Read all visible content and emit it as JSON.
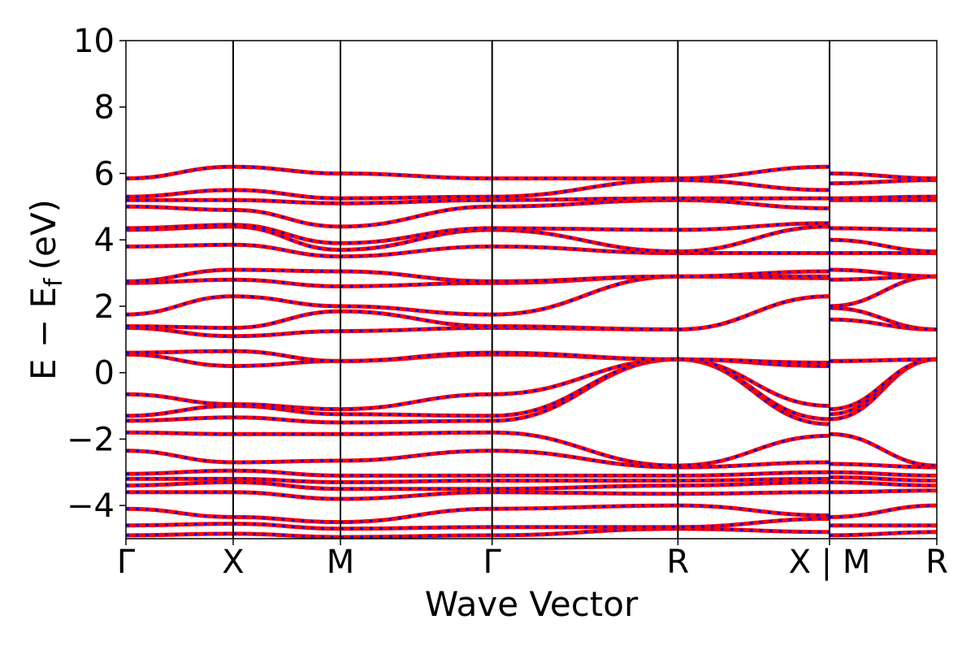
{
  "chart_data": {
    "type": "line",
    "title": "",
    "xlabel": "Wave Vector",
    "ylabel_main": "E − E",
    "ylabel_sub": "f",
    "ylabel_unit": "(eV)",
    "ylim": [
      -5,
      10
    ],
    "yticks": [
      10,
      8,
      6,
      4,
      2,
      0,
      -2,
      -4
    ],
    "ytick_labels": [
      "10",
      "8",
      "6",
      "4",
      "2",
      "0",
      "−2",
      "−4"
    ],
    "xlim": [
      0,
      7.5
    ],
    "kpoint_labels": [
      "Γ",
      "X",
      "M",
      "Γ",
      "R",
      "X | M",
      "R"
    ],
    "kpoint_positions": [
      0,
      1,
      2,
      3.414,
      5.146,
      6.56,
      7.56
    ],
    "grid": false,
    "legend": "none",
    "colors": {
      "band_line": "#ff0000",
      "band_dash": "#0000ff",
      "kpath_line": "#000000"
    },
    "series": [
      {
        "x": [
          0,
          1,
          2,
          3.414,
          5.146,
          6.56,
          6.561,
          7.56
        ],
        "y": [
          -4.9,
          -4.85,
          -4.95,
          -4.9,
          -4.7,
          -4.8,
          -4.9,
          -4.8
        ]
      },
      {
        "x": [
          0,
          1,
          2,
          3.414,
          5.146,
          6.56,
          6.561,
          7.56
        ],
        "y": [
          -4.6,
          -4.55,
          -4.7,
          -4.65,
          -4.65,
          -4.4,
          -4.6,
          -4.6
        ]
      },
      {
        "x": [
          0,
          1,
          2,
          3.414,
          5.146,
          6.56,
          6.561,
          7.56
        ],
        "y": [
          -4.1,
          -4.35,
          -4.5,
          -4.1,
          -4.0,
          -4.3,
          -4.35,
          -4.0
        ]
      },
      {
        "x": [
          0,
          1,
          2,
          3.414,
          5.146,
          6.56,
          6.561,
          7.56
        ],
        "y": [
          -3.6,
          -3.6,
          -3.8,
          -3.6,
          -3.65,
          -3.6,
          -3.6,
          -3.55
        ]
      },
      {
        "x": [
          0,
          1,
          2,
          3.414,
          5.146,
          6.56,
          6.561,
          7.56
        ],
        "y": [
          -3.4,
          -3.3,
          -3.5,
          -3.5,
          -3.4,
          -3.3,
          -3.3,
          -3.4
        ]
      },
      {
        "x": [
          0,
          1,
          2,
          3.414,
          5.146,
          6.56,
          6.561,
          7.56
        ],
        "y": [
          -3.2,
          -3.2,
          -3.3,
          -3.25,
          -3.25,
          -3.2,
          -3.15,
          -3.25
        ]
      },
      {
        "x": [
          0,
          1,
          2,
          3.414,
          5.146,
          6.56,
          6.561,
          7.56
        ],
        "y": [
          -3.05,
          -2.95,
          -3.1,
          -3.1,
          -3.1,
          -3.0,
          -3.0,
          -3.1
        ]
      },
      {
        "x": [
          0,
          1,
          2,
          3.414,
          5.146,
          6.56,
          6.561,
          7.56
        ],
        "y": [
          -2.35,
          -2.7,
          -2.65,
          -2.35,
          -2.85,
          -2.7,
          -2.75,
          -2.85
        ]
      },
      {
        "x": [
          0,
          1,
          2,
          3.414,
          5.146,
          6.56,
          6.561,
          7.56
        ],
        "y": [
          -1.8,
          -1.85,
          -1.85,
          -1.8,
          -2.8,
          -1.9,
          -1.85,
          -2.8
        ]
      },
      {
        "x": [
          0,
          1,
          2,
          3.414,
          5.146,
          6.56,
          6.561,
          7.56
        ],
        "y": [
          -1.45,
          -1.35,
          -1.5,
          -1.45,
          0.4,
          -1.55,
          -1.4,
          0.4
        ]
      },
      {
        "x": [
          0,
          1,
          2,
          3.414,
          5.146,
          6.56,
          6.561,
          7.56
        ],
        "y": [
          -1.3,
          -1.0,
          -1.25,
          -1.3,
          0.4,
          -1.4,
          -1.25,
          0.4
        ]
      },
      {
        "x": [
          0,
          1,
          2,
          3.414,
          5.146,
          6.56,
          6.561,
          7.56
        ],
        "y": [
          -0.65,
          -0.95,
          -1.1,
          -0.65,
          0.4,
          -1.0,
          -1.1,
          0.4
        ]
      },
      {
        "x": [
          0,
          1,
          2,
          3.414,
          5.146,
          6.56,
          6.561,
          7.56
        ],
        "y": [
          0.55,
          0.2,
          0.35,
          0.55,
          0.4,
          0.2,
          0.35,
          0.4
        ]
      },
      {
        "x": [
          0,
          1,
          2,
          3.414,
          5.146,
          6.56,
          6.561,
          7.56
        ],
        "y": [
          0.6,
          0.65,
          0.35,
          0.6,
          0.4,
          0.3,
          0.35,
          0.4
        ]
      },
      {
        "x": [
          0,
          1,
          2,
          3.414,
          5.146,
          6.56,
          6.561,
          7.56
        ],
        "y": [
          1.35,
          1.1,
          1.25,
          1.35,
          1.3,
          2.3,
          1.6,
          1.3
        ]
      },
      {
        "x": [
          0,
          1,
          2,
          3.414,
          5.146,
          6.56,
          6.561,
          7.56
        ],
        "y": [
          1.4,
          1.35,
          1.85,
          1.4,
          1.3,
          2.3,
          1.95,
          1.3
        ]
      },
      {
        "x": [
          0,
          1,
          2,
          3.414,
          5.146,
          6.56,
          6.561,
          7.56
        ],
        "y": [
          1.75,
          2.3,
          2.0,
          1.75,
          2.9,
          2.85,
          2.0,
          2.9
        ]
      },
      {
        "x": [
          0,
          1,
          2,
          3.414,
          5.146,
          6.56,
          6.561,
          7.56
        ],
        "y": [
          2.7,
          2.8,
          2.6,
          2.7,
          2.9,
          2.9,
          2.8,
          2.9
        ]
      },
      {
        "x": [
          0,
          1,
          2,
          3.414,
          5.146,
          6.56,
          6.561,
          7.56
        ],
        "y": [
          2.75,
          3.1,
          3.05,
          2.75,
          2.9,
          3.05,
          3.1,
          2.9
        ]
      },
      {
        "x": [
          0,
          1,
          2,
          3.414,
          5.146,
          6.56,
          6.561,
          7.56
        ],
        "y": [
          3.8,
          3.85,
          3.5,
          3.8,
          3.6,
          3.6,
          3.6,
          3.6
        ]
      },
      {
        "x": [
          0,
          1,
          2,
          3.414,
          5.146,
          6.56,
          6.561,
          7.56
        ],
        "y": [
          4.3,
          4.4,
          3.7,
          4.3,
          3.65,
          4.4,
          4.0,
          3.65
        ]
      },
      {
        "x": [
          0,
          1,
          2,
          3.414,
          5.146,
          6.56,
          6.561,
          7.56
        ],
        "y": [
          4.35,
          4.45,
          3.9,
          4.35,
          4.3,
          4.5,
          4.35,
          4.3
        ]
      },
      {
        "x": [
          0,
          1,
          2,
          3.414,
          5.146,
          6.56,
          6.561,
          7.56
        ],
        "y": [
          5.0,
          4.9,
          4.4,
          5.0,
          5.2,
          4.95,
          5.2,
          5.2
        ]
      },
      {
        "x": [
          0,
          1,
          2,
          3.414,
          5.146,
          6.56,
          6.561,
          7.56
        ],
        "y": [
          5.2,
          5.2,
          5.1,
          5.2,
          5.25,
          5.25,
          5.25,
          5.3
        ]
      },
      {
        "x": [
          0,
          1,
          2,
          3.414,
          5.146,
          6.56,
          6.561,
          7.56
        ],
        "y": [
          5.3,
          5.5,
          5.25,
          5.3,
          5.8,
          5.5,
          5.7,
          5.8
        ]
      },
      {
        "x": [
          0,
          1,
          2,
          3.414,
          5.146,
          6.56,
          6.561,
          7.56
        ],
        "y": [
          5.85,
          6.2,
          6.0,
          5.85,
          5.85,
          6.2,
          6.0,
          5.85
        ]
      }
    ]
  }
}
